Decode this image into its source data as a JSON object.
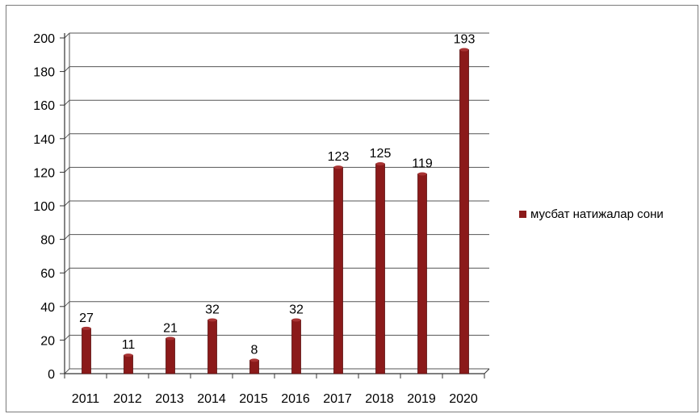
{
  "chart_data": {
    "type": "bar",
    "categories": [
      "2011",
      "2012",
      "2013",
      "2014",
      "2015",
      "2016",
      "2017",
      "2018",
      "2019",
      "2020"
    ],
    "series": [
      {
        "name": "мусбат натижалар сони",
        "values": [
          27,
          11,
          21,
          32,
          8,
          32,
          123,
          125,
          119,
          193
        ],
        "color": "#8b1a1a"
      }
    ],
    "data_labels": [
      "27",
      "11",
      "21",
      "32",
      "8",
      "32",
      "123",
      "125",
      "119",
      "193"
    ],
    "y_ticks": [
      "0",
      "20",
      "40",
      "60",
      "80",
      "100",
      "120",
      "140",
      "160",
      "180",
      "200"
    ],
    "ylim": [
      0,
      200
    ],
    "grid": true,
    "legend_position": "right",
    "title": "",
    "xlabel": "",
    "ylabel": ""
  }
}
